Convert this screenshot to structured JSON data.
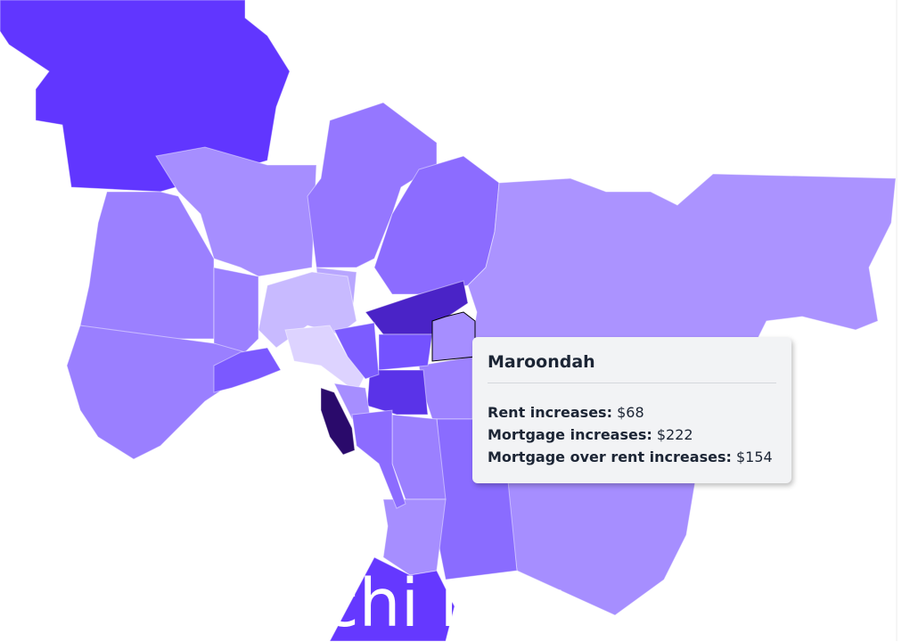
{
  "tooltip": {
    "title": "Maroondah",
    "rows": [
      {
        "label": "Rent increases:",
        "value": "$68"
      },
      {
        "label": "Mortgage increases:",
        "value": "$222"
      },
      {
        "label": "Mortgage over rent increases:",
        "value": "$154"
      }
    ]
  },
  "overlay_text": "chi m u"
}
